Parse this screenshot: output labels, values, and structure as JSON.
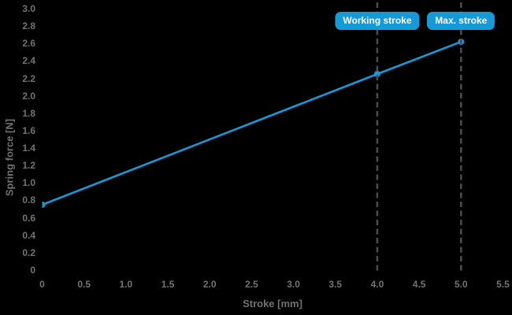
{
  "chart_data": {
    "type": "line",
    "title": "",
    "xlabel": "Stroke [mm]",
    "ylabel": "Spring force [N]",
    "xlim": [
      0,
      5.5
    ],
    "ylim": [
      0,
      3.0
    ],
    "grid": false,
    "legend": "none",
    "x_ticks": [
      "0",
      "0.5",
      "1.0",
      "1.5",
      "2.0",
      "2.5",
      "3.0",
      "3.5",
      "4.0",
      "4.5",
      "5.0",
      "5.5"
    ],
    "y_ticks": [
      "0",
      "0.2",
      "0.4",
      "0.6",
      "0.8",
      "1.0",
      "1.2",
      "1.4",
      "1.6",
      "1.8",
      "2.0",
      "2.2",
      "2.4",
      "2.6",
      "2.8",
      "3.0"
    ],
    "series": [
      {
        "name": "Spring force",
        "x": [
          0,
          4,
          5
        ],
        "values": [
          0.75,
          2.25,
          2.62
        ],
        "marker": "circle"
      }
    ],
    "annotations": [
      {
        "label": "Working stroke",
        "x": 4.0,
        "style": "vertical-dashed-line-with-badge"
      },
      {
        "label": "Max. stroke",
        "x": 5.0,
        "style": "vertical-dashed-line-with-badge"
      }
    ],
    "colors": {
      "accent": "#1699d6",
      "badge_text": "#ffffff",
      "tick_label": "#737373",
      "axis_title": "#717171",
      "dashed_line": "#4b4b4b",
      "background": "#000000"
    }
  }
}
